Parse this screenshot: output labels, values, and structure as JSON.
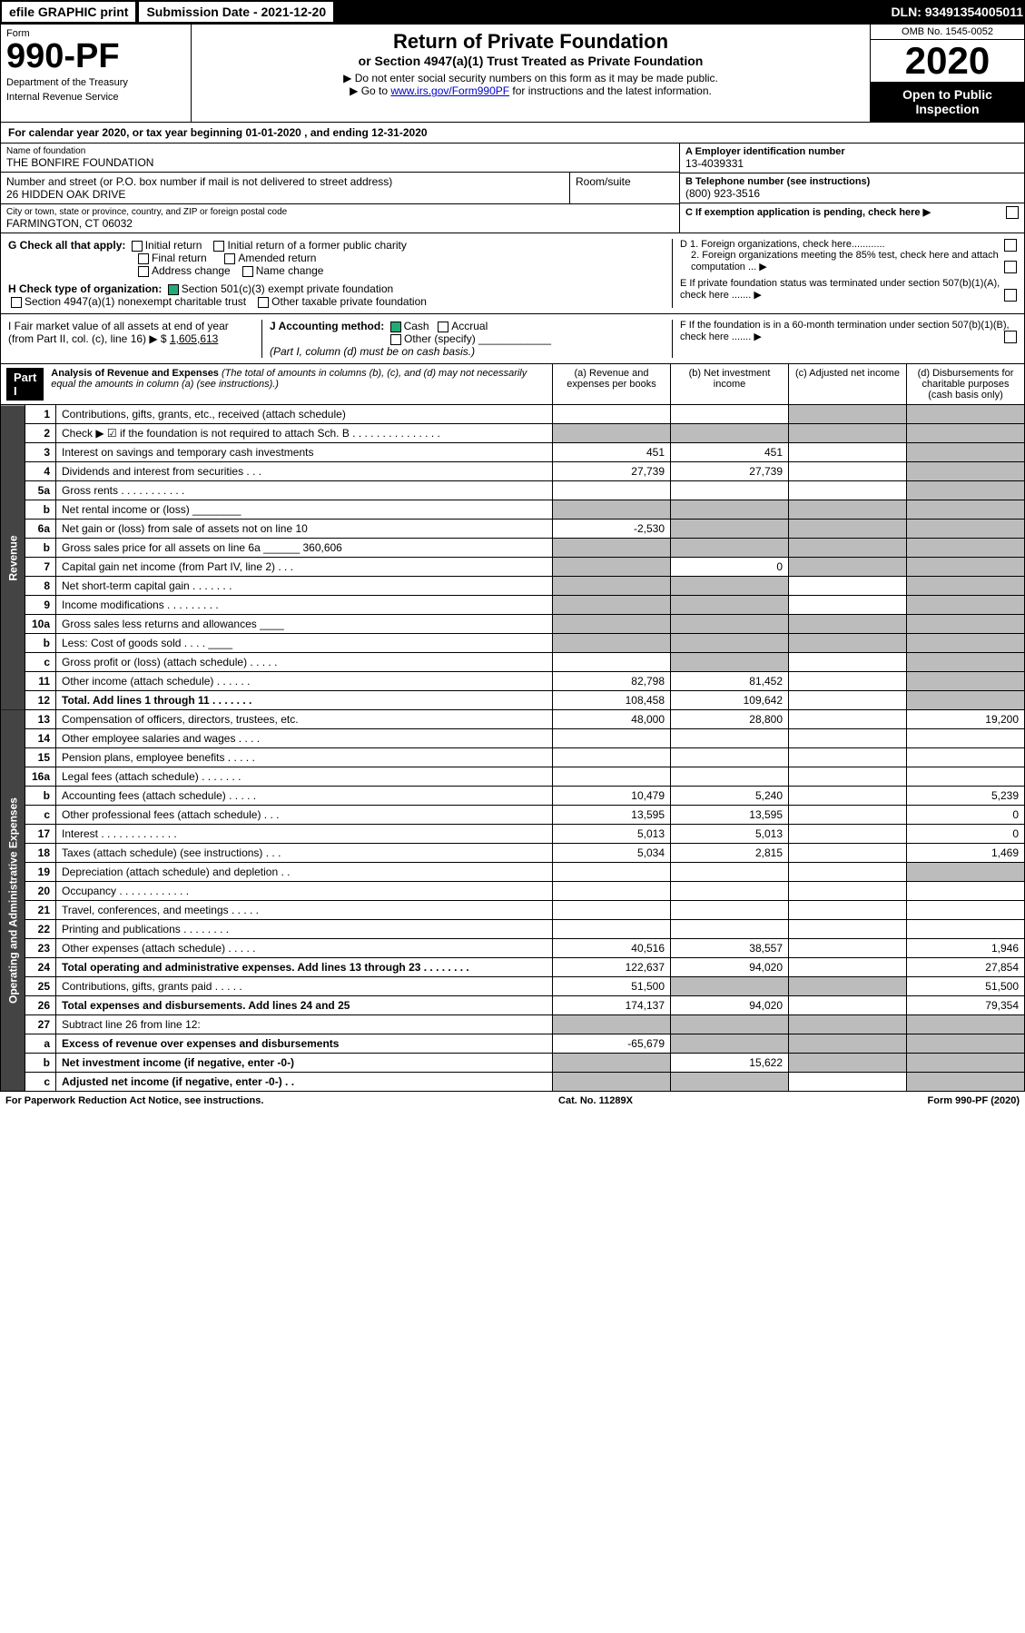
{
  "topbar": {
    "efile": "efile GRAPHIC print",
    "submission": "Submission Date - 2021-12-20",
    "dln": "DLN: 93491354005011"
  },
  "header": {
    "form_label": "Form",
    "form_num": "990-PF",
    "dept": "Department of the Treasury",
    "irs": "Internal Revenue Service",
    "title": "Return of Private Foundation",
    "subtitle": "or Section 4947(a)(1) Trust Treated as Private Foundation",
    "note1": "▶ Do not enter social security numbers on this form as it may be made public.",
    "note2_pre": "▶ Go to ",
    "note2_link": "www.irs.gov/Form990PF",
    "note2_post": " for instructions and the latest information.",
    "omb": "OMB No. 1545-0052",
    "year": "2020",
    "open": "Open to Public Inspection"
  },
  "cal_year": "For calendar year 2020, or tax year beginning 01-01-2020          , and ending 12-31-2020",
  "foundation": {
    "name_label": "Name of foundation",
    "name": "THE BONFIRE FOUNDATION",
    "addr_label": "Number and street (or P.O. box number if mail is not delivered to street address)",
    "addr": "26 HIDDEN OAK DRIVE",
    "room_label": "Room/suite",
    "city_label": "City or town, state or province, country, and ZIP or foreign postal code",
    "city": "FARMINGTON, CT  06032",
    "ein_label": "A Employer identification number",
    "ein": "13-4039331",
    "phone_label": "B Telephone number (see instructions)",
    "phone": "(800) 923-3516",
    "c_label": "C If exemption application is pending, check here ▶"
  },
  "g_sect": {
    "label": "G Check all that apply:",
    "opts": [
      "Initial return",
      "Initial return of a former public charity",
      "Final return",
      "Amended return",
      "Address change",
      "Name change"
    ]
  },
  "h_sect": {
    "label": "H Check type of organization:",
    "opt1": "Section 501(c)(3) exempt private foundation",
    "opt2": "Section 4947(a)(1) nonexempt charitable trust",
    "opt3": "Other taxable private foundation"
  },
  "d_sect": {
    "d1": "D 1. Foreign organizations, check here............",
    "d2": "2. Foreign organizations meeting the 85% test, check here and attach computation ... ▶",
    "e": "E  If private foundation status was terminated under section 507(b)(1)(A), check here ....... ▶",
    "f": "F  If the foundation is in a 60-month termination under section 507(b)(1)(B), check here ....... ▶"
  },
  "i_sect": {
    "label": "I Fair market value of all assets at end of year (from Part II, col. (c), line 16) ▶ $",
    "val": "1,605,613"
  },
  "j_sect": {
    "label": "J Accounting method:",
    "cash": "Cash",
    "accrual": "Accrual",
    "other": "Other (specify)",
    "note": "(Part I, column (d) must be on cash basis.)"
  },
  "part1": {
    "label": "Part I",
    "title": "Analysis of Revenue and Expenses",
    "note": "(The total of amounts in columns (b), (c), and (d) may not necessarily equal the amounts in column (a) (see instructions).)",
    "col_a": "(a)  Revenue and expenses per books",
    "col_b": "(b)  Net investment income",
    "col_c": "(c)  Adjusted net income",
    "col_d": "(d)  Disbursements for charitable purposes (cash basis only)"
  },
  "side_rev": "Revenue",
  "side_exp": "Operating and Administrative Expenses",
  "rows": [
    {
      "n": "1",
      "d": "Contributions, gifts, grants, etc., received (attach schedule)",
      "a": "",
      "b": "",
      "c": "",
      "dd": "",
      "sa": false,
      "sb": false,
      "sc": true,
      "sd": true
    },
    {
      "n": "2",
      "d": "Check ▶ ☑ if the foundation is not required to attach Sch. B   .  .  .  .  .  .  .  .  .  .  .  .  .  .  .",
      "a": "",
      "b": "",
      "c": "",
      "dd": "",
      "sa": true,
      "sb": true,
      "sc": true,
      "sd": true
    },
    {
      "n": "3",
      "d": "Interest on savings and temporary cash investments",
      "a": "451",
      "b": "451",
      "c": "",
      "dd": "",
      "sa": false,
      "sb": false,
      "sc": false,
      "sd": true
    },
    {
      "n": "4",
      "d": "Dividends and interest from securities   .  .  .",
      "a": "27,739",
      "b": "27,739",
      "c": "",
      "dd": "",
      "sa": false,
      "sb": false,
      "sc": false,
      "sd": true
    },
    {
      "n": "5a",
      "d": "Gross rents   .  .  .  .  .  .  .  .  .  .  .",
      "a": "",
      "b": "",
      "c": "",
      "dd": "",
      "sa": false,
      "sb": false,
      "sc": false,
      "sd": true
    },
    {
      "n": "b",
      "d": "Net rental income or (loss)  ________",
      "a": "",
      "b": "",
      "c": "",
      "dd": "",
      "sa": true,
      "sb": true,
      "sc": true,
      "sd": true
    },
    {
      "n": "6a",
      "d": "Net gain or (loss) from sale of assets not on line 10",
      "a": "-2,530",
      "b": "",
      "c": "",
      "dd": "",
      "sa": false,
      "sb": true,
      "sc": true,
      "sd": true
    },
    {
      "n": "b",
      "d": "Gross sales price for all assets on line 6a ______ 360,606",
      "a": "",
      "b": "",
      "c": "",
      "dd": "",
      "sa": true,
      "sb": true,
      "sc": true,
      "sd": true
    },
    {
      "n": "7",
      "d": "Capital gain net income (from Part IV, line 2)  .  .  .",
      "a": "",
      "b": "0",
      "c": "",
      "dd": "",
      "sa": true,
      "sb": false,
      "sc": true,
      "sd": true
    },
    {
      "n": "8",
      "d": "Net short-term capital gain  .  .  .  .  .  .  .",
      "a": "",
      "b": "",
      "c": "",
      "dd": "",
      "sa": true,
      "sb": true,
      "sc": false,
      "sd": true
    },
    {
      "n": "9",
      "d": "Income modifications  .  .  .  .  .  .  .  .  .",
      "a": "",
      "b": "",
      "c": "",
      "dd": "",
      "sa": true,
      "sb": true,
      "sc": false,
      "sd": true
    },
    {
      "n": "10a",
      "d": "Gross sales less returns and allowances  ____",
      "a": "",
      "b": "",
      "c": "",
      "dd": "",
      "sa": true,
      "sb": true,
      "sc": true,
      "sd": true
    },
    {
      "n": "b",
      "d": "Less: Cost of goods sold   .  .  .  .   ____",
      "a": "",
      "b": "",
      "c": "",
      "dd": "",
      "sa": true,
      "sb": true,
      "sc": true,
      "sd": true
    },
    {
      "n": "c",
      "d": "Gross profit or (loss) (attach schedule)   .  .  .  .  .",
      "a": "",
      "b": "",
      "c": "",
      "dd": "",
      "sa": false,
      "sb": true,
      "sc": false,
      "sd": true
    },
    {
      "n": "11",
      "d": "Other income (attach schedule)   .  .  .  .  .  .",
      "a": "82,798",
      "b": "81,452",
      "c": "",
      "dd": "",
      "sa": false,
      "sb": false,
      "sc": false,
      "sd": true
    },
    {
      "n": "12",
      "d": "Total. Add lines 1 through 11  .  .  .  .  .  .  .",
      "a": "108,458",
      "b": "109,642",
      "c": "",
      "dd": "",
      "sa": false,
      "sb": false,
      "sc": false,
      "sd": true,
      "bold": true
    },
    {
      "n": "13",
      "d": "Compensation of officers, directors, trustees, etc.",
      "a": "48,000",
      "b": "28,800",
      "c": "",
      "dd": "19,200",
      "sa": false,
      "sb": false,
      "sc": false,
      "sd": false
    },
    {
      "n": "14",
      "d": "Other employee salaries and wages   .  .  .  .",
      "a": "",
      "b": "",
      "c": "",
      "dd": "",
      "sa": false,
      "sb": false,
      "sc": false,
      "sd": false
    },
    {
      "n": "15",
      "d": "Pension plans, employee benefits  .  .  .  .  .",
      "a": "",
      "b": "",
      "c": "",
      "dd": "",
      "sa": false,
      "sb": false,
      "sc": false,
      "sd": false
    },
    {
      "n": "16a",
      "d": "Legal fees (attach schedule)  .  .  .  .  .  .  .",
      "a": "",
      "b": "",
      "c": "",
      "dd": "",
      "sa": false,
      "sb": false,
      "sc": false,
      "sd": false
    },
    {
      "n": "b",
      "d": "Accounting fees (attach schedule)  .  .  .  .  .",
      "a": "10,479",
      "b": "5,240",
      "c": "",
      "dd": "5,239",
      "sa": false,
      "sb": false,
      "sc": false,
      "sd": false
    },
    {
      "n": "c",
      "d": "Other professional fees (attach schedule)   .  .  .",
      "a": "13,595",
      "b": "13,595",
      "c": "",
      "dd": "0",
      "sa": false,
      "sb": false,
      "sc": false,
      "sd": false
    },
    {
      "n": "17",
      "d": "Interest  .  .  .  .  .  .  .  .  .  .  .  .  .",
      "a": "5,013",
      "b": "5,013",
      "c": "",
      "dd": "0",
      "sa": false,
      "sb": false,
      "sc": false,
      "sd": false
    },
    {
      "n": "18",
      "d": "Taxes (attach schedule) (see instructions)   .  .  .",
      "a": "5,034",
      "b": "2,815",
      "c": "",
      "dd": "1,469",
      "sa": false,
      "sb": false,
      "sc": false,
      "sd": false
    },
    {
      "n": "19",
      "d": "Depreciation (attach schedule) and depletion   .  .",
      "a": "",
      "b": "",
      "c": "",
      "dd": "",
      "sa": false,
      "sb": false,
      "sc": false,
      "sd": true
    },
    {
      "n": "20",
      "d": "Occupancy  .  .  .  .  .  .  .  .  .  .  .  .",
      "a": "",
      "b": "",
      "c": "",
      "dd": "",
      "sa": false,
      "sb": false,
      "sc": false,
      "sd": false
    },
    {
      "n": "21",
      "d": "Travel, conferences, and meetings  .  .  .  .  .",
      "a": "",
      "b": "",
      "c": "",
      "dd": "",
      "sa": false,
      "sb": false,
      "sc": false,
      "sd": false
    },
    {
      "n": "22",
      "d": "Printing and publications  .  .  .  .  .  .  .  .",
      "a": "",
      "b": "",
      "c": "",
      "dd": "",
      "sa": false,
      "sb": false,
      "sc": false,
      "sd": false
    },
    {
      "n": "23",
      "d": "Other expenses (attach schedule)  .  .  .  .  .",
      "a": "40,516",
      "b": "38,557",
      "c": "",
      "dd": "1,946",
      "sa": false,
      "sb": false,
      "sc": false,
      "sd": false
    },
    {
      "n": "24",
      "d": "Total operating and administrative expenses. Add lines 13 through 23  .  .  .  .  .  .  .  .",
      "a": "122,637",
      "b": "94,020",
      "c": "",
      "dd": "27,854",
      "sa": false,
      "sb": false,
      "sc": false,
      "sd": false,
      "bold": true
    },
    {
      "n": "25",
      "d": "Contributions, gifts, grants paid   .  .  .  .  .",
      "a": "51,500",
      "b": "",
      "c": "",
      "dd": "51,500",
      "sa": false,
      "sb": true,
      "sc": true,
      "sd": false
    },
    {
      "n": "26",
      "d": "Total expenses and disbursements. Add lines 24 and 25",
      "a": "174,137",
      "b": "94,020",
      "c": "",
      "dd": "79,354",
      "sa": false,
      "sb": false,
      "sc": false,
      "sd": false,
      "bold": true
    },
    {
      "n": "27",
      "d": "Subtract line 26 from line 12:",
      "a": "",
      "b": "",
      "c": "",
      "dd": "",
      "sa": true,
      "sb": true,
      "sc": true,
      "sd": true
    },
    {
      "n": "a",
      "d": "Excess of revenue over expenses and disbursements",
      "a": "-65,679",
      "b": "",
      "c": "",
      "dd": "",
      "sa": false,
      "sb": true,
      "sc": true,
      "sd": true,
      "bold": true
    },
    {
      "n": "b",
      "d": "Net investment income (if negative, enter -0-)",
      "a": "",
      "b": "15,622",
      "c": "",
      "dd": "",
      "sa": true,
      "sb": false,
      "sc": true,
      "sd": true,
      "bold": true
    },
    {
      "n": "c",
      "d": "Adjusted net income (if negative, enter -0-)  .  .",
      "a": "",
      "b": "",
      "c": "",
      "dd": "",
      "sa": true,
      "sb": true,
      "sc": false,
      "sd": true,
      "bold": true
    }
  ],
  "footer": {
    "left": "For Paperwork Reduction Act Notice, see instructions.",
    "cat": "Cat. No. 11289X",
    "right": "Form 990-PF (2020)"
  }
}
